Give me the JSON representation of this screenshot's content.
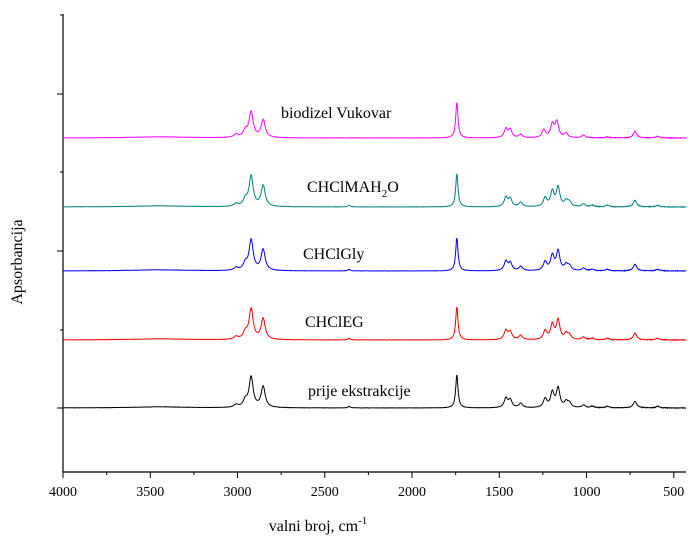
{
  "chart_data": {
    "type": "line",
    "xlabel": "valni broj, cm",
    "xlabel_sup": "-1",
    "ylabel": "Apsorbancija",
    "xlim": [
      4000,
      430
    ],
    "x_reversed": true,
    "x_ticks": [
      4000,
      3500,
      3000,
      2500,
      2000,
      1500,
      1000,
      500
    ],
    "y_ticks_labeled": false,
    "legend": "labels next to curves",
    "series": [
      {
        "name": "prije ekstrakcije",
        "label_sub": "",
        "label_tail": "",
        "color": "#000000",
        "offset": 0,
        "peaks": [
          [
            3008,
            0.05
          ],
          [
            2955,
            0.12
          ],
          [
            2922,
            0.55
          ],
          [
            2853,
            0.38
          ],
          [
            2360,
            0.03
          ],
          [
            1743,
            0.6
          ],
          [
            1462,
            0.17
          ],
          [
            1437,
            0.14
          ],
          [
            1377,
            0.08
          ],
          [
            1237,
            0.16
          ],
          [
            1196,
            0.27
          ],
          [
            1163,
            0.35
          ],
          [
            1117,
            0.1
          ],
          [
            1098,
            0.08
          ],
          [
            1017,
            0.05
          ],
          [
            967,
            0.03
          ],
          [
            880,
            0.03
          ],
          [
            722,
            0.12
          ],
          [
            593,
            0.03
          ]
        ]
      },
      {
        "name": "CHClEG",
        "label_sub": "",
        "label_tail": "",
        "color": "#ff0000",
        "offset": 1,
        "peaks": [
          [
            3008,
            0.05
          ],
          [
            2955,
            0.12
          ],
          [
            2922,
            0.55
          ],
          [
            2853,
            0.38
          ],
          [
            2360,
            0.03
          ],
          [
            1743,
            0.6
          ],
          [
            1462,
            0.17
          ],
          [
            1437,
            0.14
          ],
          [
            1377,
            0.08
          ],
          [
            1237,
            0.16
          ],
          [
            1196,
            0.27
          ],
          [
            1163,
            0.35
          ],
          [
            1117,
            0.1
          ],
          [
            1098,
            0.08
          ],
          [
            1017,
            0.05
          ],
          [
            967,
            0.03
          ],
          [
            880,
            0.03
          ],
          [
            722,
            0.12
          ],
          [
            593,
            0.03
          ]
        ]
      },
      {
        "name": "CHClGly",
        "label_sub": "",
        "label_tail": "",
        "color": "#0000ff",
        "offset": 2,
        "peaks": [
          [
            3008,
            0.05
          ],
          [
            2955,
            0.12
          ],
          [
            2922,
            0.55
          ],
          [
            2853,
            0.38
          ],
          [
            2360,
            0.03
          ],
          [
            1743,
            0.6
          ],
          [
            1462,
            0.17
          ],
          [
            1437,
            0.14
          ],
          [
            1377,
            0.08
          ],
          [
            1237,
            0.16
          ],
          [
            1196,
            0.27
          ],
          [
            1163,
            0.35
          ],
          [
            1117,
            0.1
          ],
          [
            1098,
            0.08
          ],
          [
            1017,
            0.05
          ],
          [
            967,
            0.03
          ],
          [
            880,
            0.03
          ],
          [
            722,
            0.12
          ],
          [
            593,
            0.03
          ]
        ]
      },
      {
        "name": "CHClMAH",
        "label_sub": "2",
        "label_tail": "O",
        "color": "#008080",
        "offset": 3,
        "peaks": [
          [
            3008,
            0.05
          ],
          [
            2955,
            0.12
          ],
          [
            2922,
            0.55
          ],
          [
            2853,
            0.38
          ],
          [
            2360,
            0.03
          ],
          [
            1743,
            0.6
          ],
          [
            1462,
            0.17
          ],
          [
            1437,
            0.14
          ],
          [
            1377,
            0.08
          ],
          [
            1237,
            0.16
          ],
          [
            1196,
            0.27
          ],
          [
            1163,
            0.35
          ],
          [
            1117,
            0.1
          ],
          [
            1098,
            0.08
          ],
          [
            1017,
            0.05
          ],
          [
            967,
            0.03
          ],
          [
            880,
            0.03
          ],
          [
            722,
            0.12
          ],
          [
            593,
            0.03
          ]
        ]
      },
      {
        "name": "biodizel Vukovar",
        "label_sub": "",
        "label_tail": "",
        "color": "#ff00ff",
        "offset": 4,
        "peaks": [
          [
            3008,
            0.06
          ],
          [
            2955,
            0.12
          ],
          [
            2922,
            0.46
          ],
          [
            2853,
            0.32
          ],
          [
            1743,
            0.64
          ],
          [
            1462,
            0.16
          ],
          [
            1437,
            0.14
          ],
          [
            1377,
            0.06
          ],
          [
            1245,
            0.14
          ],
          [
            1196,
            0.24
          ],
          [
            1170,
            0.28
          ],
          [
            1117,
            0.08
          ],
          [
            1017,
            0.05
          ],
          [
            880,
            0.02
          ],
          [
            722,
            0.12
          ],
          [
            593,
            0.03
          ]
        ]
      }
    ]
  }
}
